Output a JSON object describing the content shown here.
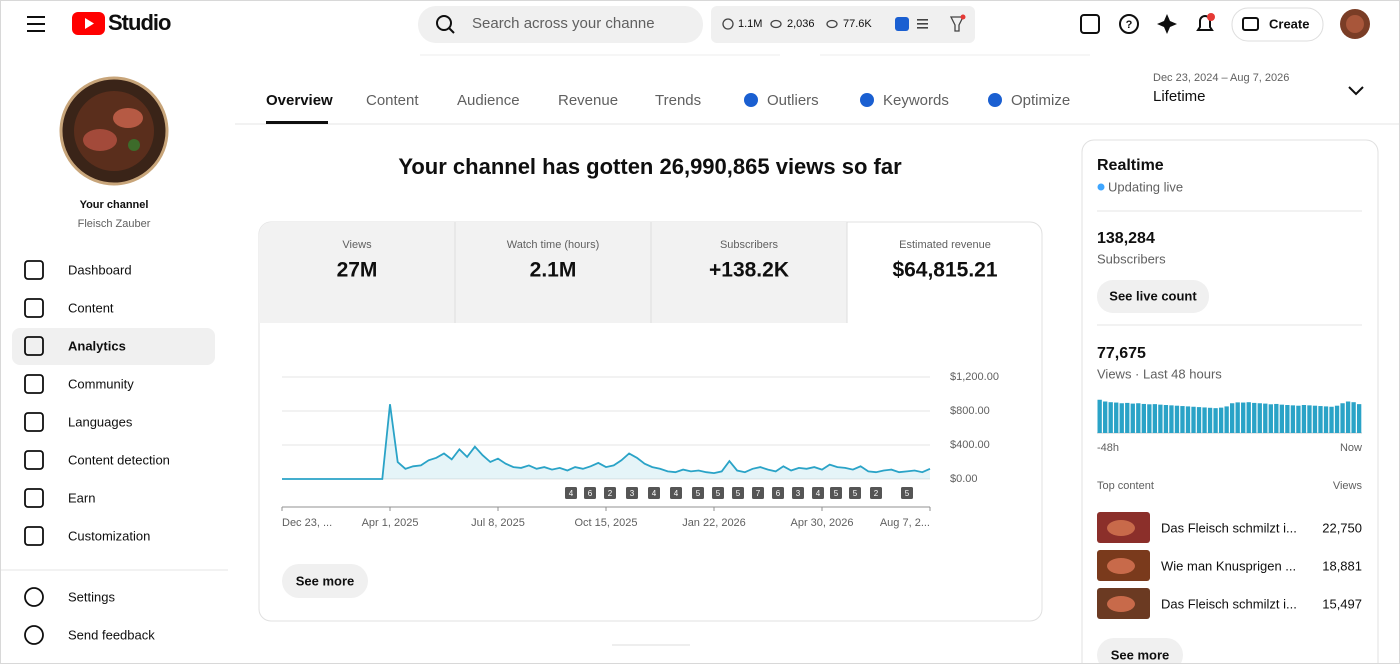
{
  "header": {
    "logo_text": "Studio",
    "search_placeholder": "Search across your channe",
    "stats": [
      "1.1M",
      "2,036",
      "77.6K"
    ],
    "create": "Create"
  },
  "sidebar": {
    "channel_label": "Your channel",
    "channel_name": "Fleisch Zauber",
    "nav": [
      "Dashboard",
      "Content",
      "Analytics",
      "Community",
      "Languages",
      "Content detection",
      "Earn",
      "Customization"
    ],
    "footer": [
      "Settings",
      "Send feedback"
    ]
  },
  "tabs": [
    "Overview",
    "Content",
    "Audience",
    "Revenue",
    "Trends",
    "Outliers",
    "Keywords",
    "Optimize"
  ],
  "date_range": {
    "range": "Dec 23, 2024 – Aug 7, 2026",
    "label": "Lifetime"
  },
  "headline": "Your channel has gotten 26,990,865 views so far",
  "metrics": [
    {
      "label": "Views",
      "value": "27M"
    },
    {
      "label": "Watch time (hours)",
      "value": "2.1M"
    },
    {
      "label": "Subscribers",
      "value": "+138.2K"
    },
    {
      "label": "Estimated revenue",
      "value": "$64,815.21"
    }
  ],
  "chart": {
    "type": "line",
    "color": "#2aa3c7",
    "values": [
      0,
      0,
      0,
      0,
      0,
      0,
      0,
      0,
      0,
      0,
      0,
      0,
      0,
      0,
      880,
      200,
      120,
      150,
      160,
      220,
      250,
      300,
      230,
      350,
      260,
      380,
      280,
      200,
      240,
      180,
      140,
      130,
      160,
      120,
      140,
      110,
      130,
      100,
      140,
      120,
      150,
      190,
      140,
      160,
      220,
      300,
      250,
      180,
      140,
      120,
      90,
      80,
      110,
      90,
      100,
      80,
      70,
      90,
      210,
      100,
      80,
      120,
      140,
      110,
      90,
      150,
      100,
      130,
      120,
      140,
      110,
      170,
      140,
      130,
      110,
      150,
      90,
      80,
      100,
      110,
      80,
      90,
      100,
      80,
      120
    ],
    "xlim": [
      0,
      84
    ],
    "xticks": [
      {
        "value": 0,
        "label": "Dec 23, ..."
      },
      {
        "value": 14,
        "label": "Apr 1, 2025"
      },
      {
        "value": 28,
        "label": "Jul 8, 2025"
      },
      {
        "value": 42,
        "label": "Oct 15, 2025"
      },
      {
        "value": 56,
        "label": "Jan 22, 2026"
      },
      {
        "value": 70,
        "label": "Apr 30, 2026"
      },
      {
        "value": 84,
        "label": "Aug 7, 2..."
      }
    ],
    "ylim": [
      0,
      1200
    ],
    "yticks": [
      {
        "value": 0,
        "label": "$0.00"
      },
      {
        "value": 400,
        "label": "$400.00"
      },
      {
        "value": 800,
        "label": "$800.00"
      },
      {
        "value": 1200,
        "label": "$1,200.00"
      }
    ],
    "grid": true,
    "annotations": [
      "4",
      "6",
      "2",
      "3",
      "4",
      "4",
      "5",
      "5",
      "5",
      "7",
      "6",
      "3",
      "4",
      "5",
      "5",
      "2",
      "5"
    ],
    "see_more": "See more"
  },
  "realtime": {
    "title": "Realtime",
    "status": "Updating live",
    "subscribers": "138,284",
    "subscribers_label": "Subscribers",
    "live_button": "See live count",
    "views": "77,675",
    "views_label": "Views · Last 48 hours",
    "bars": [
      1900,
      1800,
      1760,
      1740,
      1700,
      1720,
      1680,
      1700,
      1660,
      1640,
      1650,
      1620,
      1600,
      1580,
      1560,
      1540,
      1520,
      1500,
      1480,
      1460,
      1440,
      1420,
      1450,
      1520,
      1700,
      1750,
      1740,
      1760,
      1720,
      1700,
      1680,
      1640,
      1660,
      1620,
      1600,
      1580,
      1560,
      1600,
      1580,
      1560,
      1540,
      1520,
      1500,
      1560,
      1700,
      1800,
      1760,
      1650
    ],
    "bars_color": "#2aa3c7",
    "axis_start": "-48h",
    "axis_end": "Now",
    "top_content_label": "Top content",
    "top_content_views_label": "Views",
    "top_content": [
      {
        "title": "Das Fleisch schmilzt i...",
        "views": "22,750"
      },
      {
        "title": "Wie man Knusprigen ...",
        "views": "18,881"
      },
      {
        "title": "Das Fleisch schmilzt i...",
        "views": "15,497"
      }
    ],
    "see_more": "See more"
  }
}
